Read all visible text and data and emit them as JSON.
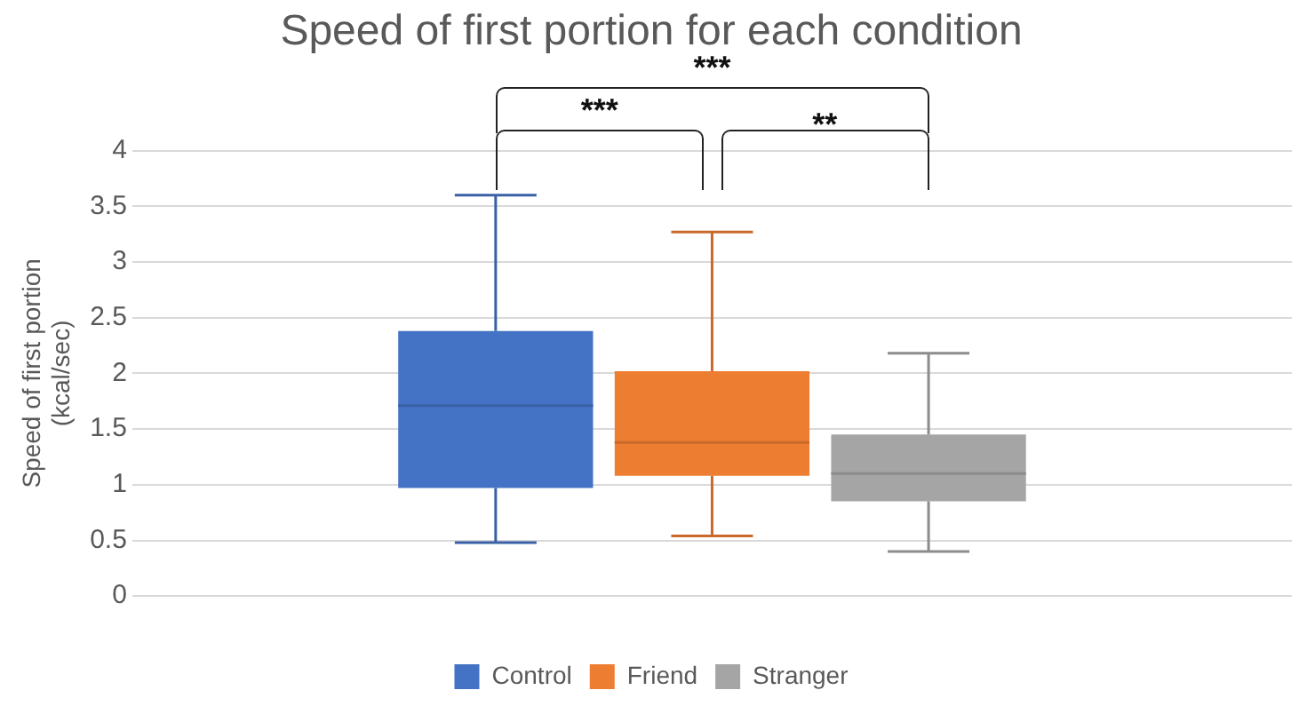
{
  "chart_data": {
    "type": "box",
    "title": "Speed of first portion for each condition",
    "ylabel": "Speed of first portion (kcal/sec)",
    "categories": [
      null
    ],
    "series": [
      {
        "name": "Control",
        "color": "#4472c4",
        "boxes": [
          {
            "low": 0.48,
            "q1": 0.97,
            "median": 1.71,
            "q3": 2.38,
            "high": 3.6
          }
        ]
      },
      {
        "name": "Friend",
        "color": "#ed7d31",
        "boxes": [
          {
            "low": 0.54,
            "q1": 1.08,
            "median": 1.38,
            "q3": 2.02,
            "high": 3.27
          }
        ]
      },
      {
        "name": "Stranger",
        "color": "#a5a5a5",
        "boxes": [
          {
            "low": 0.4,
            "q1": 0.85,
            "median": 1.1,
            "q3": 1.45,
            "high": 2.18
          }
        ]
      }
    ],
    "ylim": [
      0,
      4
    ],
    "yticks": [
      0,
      0.5,
      1,
      1.5,
      2,
      2.5,
      3,
      3.5,
      4
    ],
    "grid": "y",
    "legend": "bottom",
    "annotations": [
      "***",
      "**",
      "***"
    ]
  }
}
